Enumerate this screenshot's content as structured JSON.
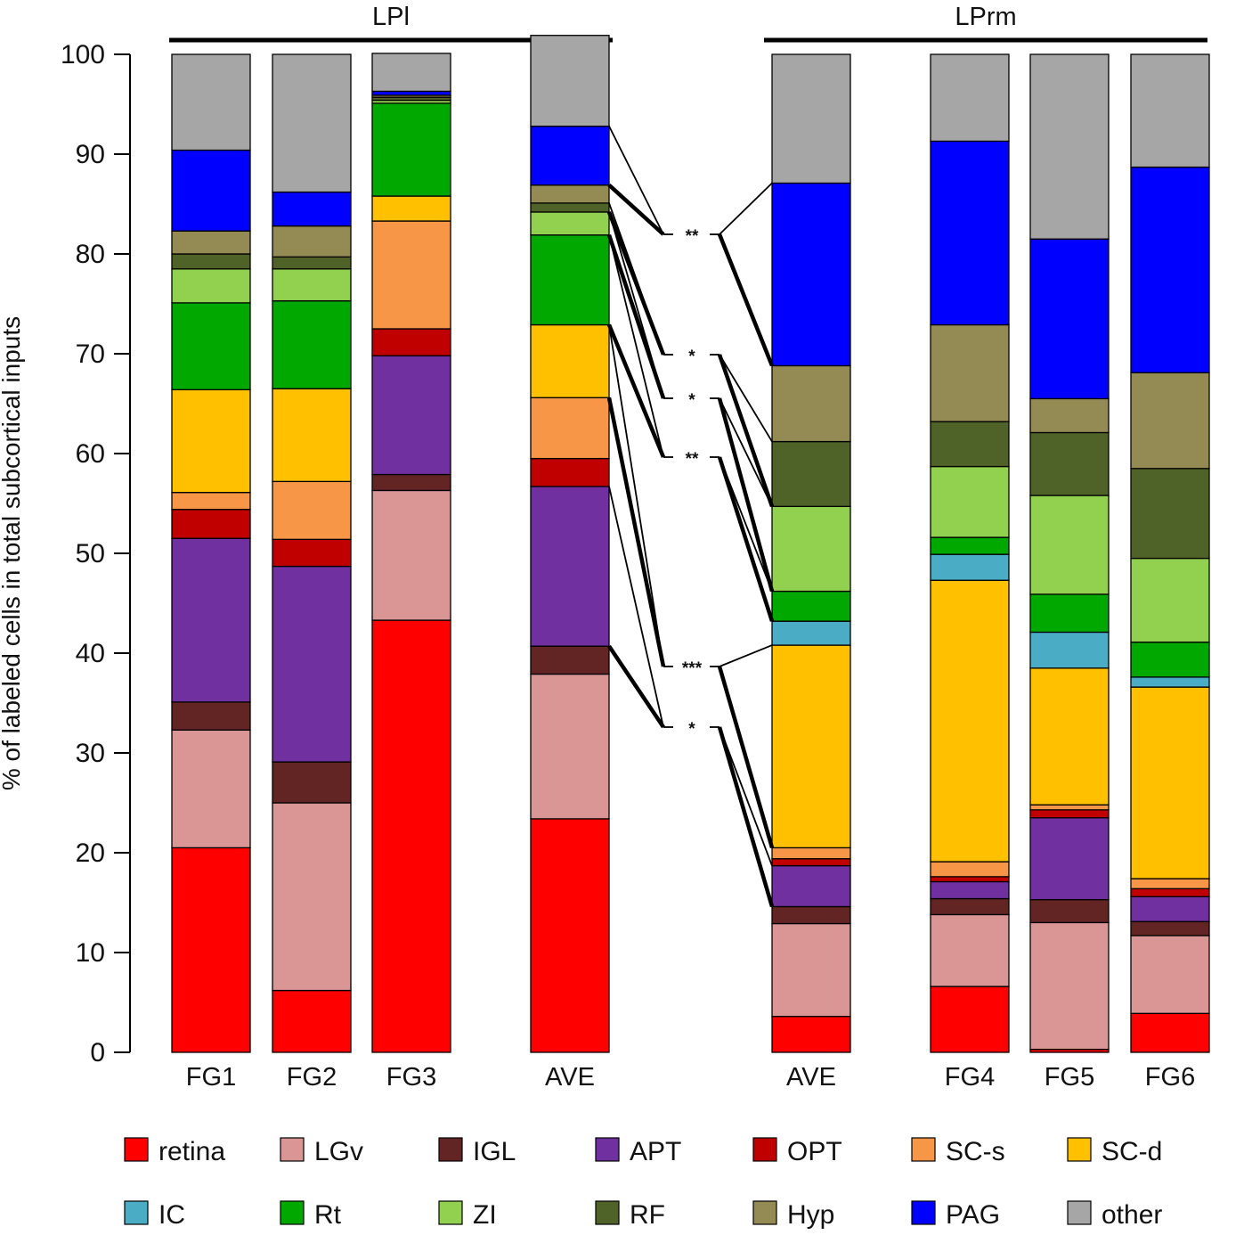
{
  "chart_data": {
    "type": "bar",
    "stacked": true,
    "ylabel": "% of labeled cells in total subcortical inputs",
    "ylim": [
      0,
      100
    ],
    "yticks": [
      0,
      10,
      20,
      30,
      40,
      50,
      60,
      70,
      80,
      90,
      100
    ],
    "groups": [
      {
        "name": "LPl",
        "categories": [
          "FG1",
          "FG2",
          "FG3",
          "AVE"
        ]
      },
      {
        "name": "LPrm",
        "categories": [
          "AVE",
          "FG4",
          "FG5",
          "FG6"
        ]
      }
    ],
    "categories": [
      "FG1",
      "FG2",
      "FG3",
      "AVE",
      "AVE",
      "FG4",
      "FG5",
      "FG6"
    ],
    "series": [
      {
        "name": "retina",
        "color": "#ff0000",
        "values": [
          20.5,
          6.2,
          43.3,
          23.4,
          3.6,
          6.6,
          0.3,
          3.9
        ]
      },
      {
        "name": "LGv",
        "color": "#da9694",
        "values": [
          11.8,
          18.8,
          13.0,
          14.5,
          9.3,
          7.2,
          12.7,
          7.8
        ]
      },
      {
        "name": "IGL",
        "color": "#632523",
        "values": [
          2.8,
          4.1,
          1.6,
          2.8,
          1.7,
          1.6,
          2.3,
          1.4
        ]
      },
      {
        "name": "APT",
        "color": "#7030a0",
        "values": [
          16.4,
          19.6,
          11.9,
          16.0,
          4.1,
          1.7,
          8.2,
          2.5
        ]
      },
      {
        "name": "OPT",
        "color": "#c00000",
        "values": [
          2.9,
          2.7,
          2.7,
          2.8,
          0.7,
          0.5,
          0.8,
          0.8
        ]
      },
      {
        "name": "SC-s",
        "color": "#f79646",
        "values": [
          1.7,
          5.8,
          10.8,
          6.1,
          1.1,
          1.5,
          0.5,
          1.0
        ]
      },
      {
        "name": "SC-d",
        "color": "#ffc000",
        "values": [
          10.3,
          9.3,
          2.5,
          7.3,
          20.3,
          28.2,
          13.7,
          19.2
        ]
      },
      {
        "name": "IC",
        "color": "#4bacc6",
        "values": [
          0,
          0,
          0,
          0,
          2.4,
          2.6,
          3.6,
          1.0
        ]
      },
      {
        "name": "Rt",
        "color": "#00a800",
        "values": [
          8.7,
          8.8,
          9.3,
          9.0,
          3.0,
          1.7,
          3.8,
          3.5
        ]
      },
      {
        "name": "ZI",
        "color": "#92d050",
        "values": [
          3.4,
          3.2,
          0.3,
          2.3,
          8.5,
          7.1,
          9.9,
          8.4
        ]
      },
      {
        "name": "RF",
        "color": "#4f6228",
        "values": [
          1.5,
          1.2,
          0.3,
          0.9,
          6.5,
          4.5,
          6.3,
          9.0
        ]
      },
      {
        "name": "Hyp",
        "color": "#948a54",
        "values": [
          2.3,
          3.1,
          0.2,
          1.8,
          7.6,
          9.7,
          3.4,
          9.6
        ]
      },
      {
        "name": "PAG",
        "color": "#0000ff",
        "values": [
          8.1,
          3.4,
          0.4,
          5.9,
          18.3,
          18.4,
          16.0,
          20.6
        ]
      },
      {
        "name": "other",
        "color": "#a6a6a6",
        "values": [
          9.6,
          13.8,
          3.8,
          9.1,
          12.9,
          8.7,
          18.5,
          11.3
        ]
      }
    ],
    "comparisons": [
      {
        "label": "**",
        "series": "PAG"
      },
      {
        "label": "*",
        "series": "RF"
      },
      {
        "label": "*",
        "series": "ZI"
      },
      {
        "label": "**",
        "series": "Rt"
      },
      {
        "label": "***",
        "series": "SC-d"
      },
      {
        "label": "*",
        "series": "APT"
      }
    ],
    "legend_position": "bottom"
  }
}
